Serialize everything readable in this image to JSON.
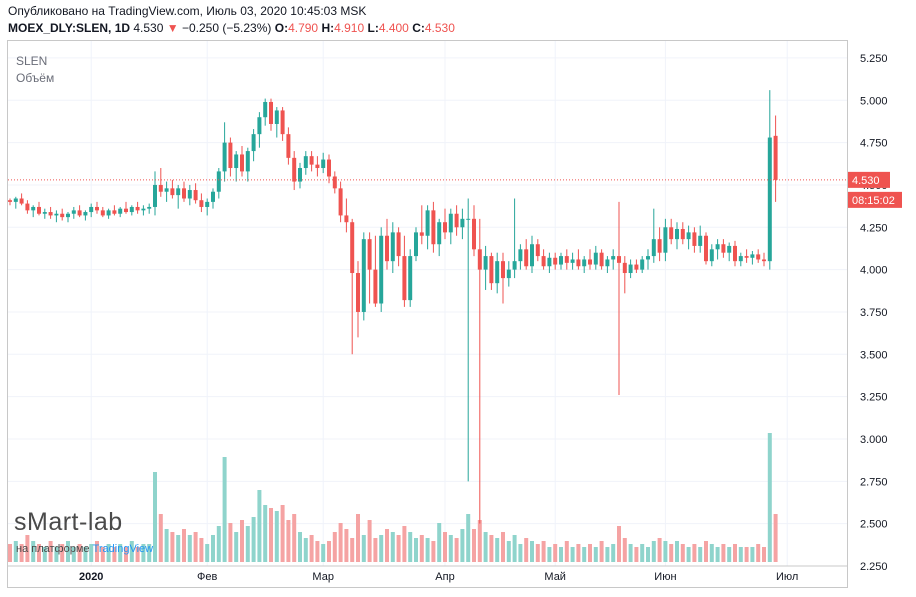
{
  "header": {
    "published": "Опубликовано на TradingView.com, Июль 03, 2020 10:45:03 MSK",
    "symbol": "MOEX_DLY:SLEN, 1D",
    "last": "4.530",
    "change_arrow": "▼",
    "change": "−0.250 (−5.23%)",
    "o_label": "O:",
    "o": "4.790",
    "h_label": "H:",
    "h": "4.910",
    "l_label": "L:",
    "l": "4.400",
    "c_label": "C:",
    "c": "4.530"
  },
  "legend": {
    "symbol": "SLEN",
    "volume": "Объём"
  },
  "watermark": {
    "brand": "sMart-lab",
    "platform_prefix": "на платформе ",
    "platform": "TradingView"
  },
  "price_badge": "4.530",
  "time_badge": "08:15:02",
  "colors": {
    "up": "#26a69a",
    "down": "#ef5350",
    "vol_up": "#8fd4cc",
    "vol_down": "#f5a3a3",
    "grid": "#f0f3fa"
  },
  "chart_data": {
    "type": "candlestick",
    "y_ticks": [
      "5.250",
      "5.000",
      "4.750",
      "4.500",
      "4.250",
      "4.000",
      "3.750",
      "3.500",
      "3.250",
      "3.000",
      "2.750",
      "2.500",
      "2.250"
    ],
    "ylim": [
      2.25,
      5.35
    ],
    "x_labels": [
      {
        "label": "2020",
        "bar": 14
      },
      {
        "label": "Фев",
        "bar": 34
      },
      {
        "label": "Мар",
        "bar": 54
      },
      {
        "label": "Апр",
        "bar": 75
      },
      {
        "label": "Май",
        "bar": 94
      },
      {
        "label": "Июн",
        "bar": 113
      },
      {
        "label": "Июл",
        "bar": 134
      }
    ],
    "last_price_line": 4.53,
    "candles": [
      {
        "o": 4.41,
        "h": 4.42,
        "l": 4.38,
        "c": 4.4,
        "v": 0.6
      },
      {
        "o": 4.4,
        "h": 4.43,
        "l": 4.36,
        "c": 4.42,
        "v": 0.7
      },
      {
        "o": 4.42,
        "h": 4.45,
        "l": 4.38,
        "c": 4.39,
        "v": 0.6
      },
      {
        "o": 4.39,
        "h": 4.41,
        "l": 4.33,
        "c": 4.35,
        "v": 0.9
      },
      {
        "o": 4.35,
        "h": 4.38,
        "l": 4.31,
        "c": 4.37,
        "v": 0.7
      },
      {
        "o": 4.37,
        "h": 4.4,
        "l": 4.32,
        "c": 4.33,
        "v": 0.6
      },
      {
        "o": 4.33,
        "h": 4.36,
        "l": 4.3,
        "c": 4.34,
        "v": 0.5
      },
      {
        "o": 4.34,
        "h": 4.37,
        "l": 4.3,
        "c": 4.32,
        "v": 0.7
      },
      {
        "o": 4.32,
        "h": 4.35,
        "l": 4.28,
        "c": 4.33,
        "v": 0.5
      },
      {
        "o": 4.33,
        "h": 4.36,
        "l": 4.29,
        "c": 4.31,
        "v": 0.6
      },
      {
        "o": 4.31,
        "h": 4.34,
        "l": 4.28,
        "c": 4.33,
        "v": 0.7
      },
      {
        "o": 4.33,
        "h": 4.37,
        "l": 4.3,
        "c": 4.35,
        "v": 0.5
      },
      {
        "o": 4.35,
        "h": 4.38,
        "l": 4.31,
        "c": 4.32,
        "v": 0.6
      },
      {
        "o": 4.32,
        "h": 4.35,
        "l": 4.29,
        "c": 4.34,
        "v": 0.5
      },
      {
        "o": 4.34,
        "h": 4.39,
        "l": 4.31,
        "c": 4.37,
        "v": 0.6
      },
      {
        "o": 4.37,
        "h": 4.4,
        "l": 4.33,
        "c": 4.35,
        "v": 0.7
      },
      {
        "o": 4.35,
        "h": 4.37,
        "l": 4.31,
        "c": 4.32,
        "v": 0.5
      },
      {
        "o": 4.32,
        "h": 4.36,
        "l": 4.3,
        "c": 4.35,
        "v": 0.6
      },
      {
        "o": 4.35,
        "h": 4.38,
        "l": 4.32,
        "c": 4.33,
        "v": 0.5
      },
      {
        "o": 4.33,
        "h": 4.37,
        "l": 4.31,
        "c": 4.36,
        "v": 0.6
      },
      {
        "o": 4.36,
        "h": 4.4,
        "l": 4.33,
        "c": 4.34,
        "v": 0.5
      },
      {
        "o": 4.34,
        "h": 4.38,
        "l": 4.32,
        "c": 4.37,
        "v": 0.7
      },
      {
        "o": 4.37,
        "h": 4.4,
        "l": 4.33,
        "c": 4.35,
        "v": 0.5
      },
      {
        "o": 4.35,
        "h": 4.38,
        "l": 4.32,
        "c": 4.36,
        "v": 0.6
      },
      {
        "o": 4.36,
        "h": 4.39,
        "l": 4.33,
        "c": 4.37,
        "v": 0.6
      },
      {
        "o": 4.37,
        "h": 4.58,
        "l": 4.32,
        "c": 4.5,
        "v": 3.0
      },
      {
        "o": 4.5,
        "h": 4.6,
        "l": 4.43,
        "c": 4.46,
        "v": 1.6
      },
      {
        "o": 4.46,
        "h": 4.52,
        "l": 4.4,
        "c": 4.48,
        "v": 1.1
      },
      {
        "o": 4.48,
        "h": 4.53,
        "l": 4.42,
        "c": 4.44,
        "v": 1.0
      },
      {
        "o": 4.44,
        "h": 4.5,
        "l": 4.36,
        "c": 4.48,
        "v": 0.9
      },
      {
        "o": 4.48,
        "h": 4.52,
        "l": 4.4,
        "c": 4.42,
        "v": 1.1
      },
      {
        "o": 4.42,
        "h": 4.5,
        "l": 4.38,
        "c": 4.47,
        "v": 0.9
      },
      {
        "o": 4.47,
        "h": 4.51,
        "l": 4.39,
        "c": 4.41,
        "v": 1.0
      },
      {
        "o": 4.41,
        "h": 4.45,
        "l": 4.34,
        "c": 4.37,
        "v": 0.8
      },
      {
        "o": 4.37,
        "h": 4.42,
        "l": 4.32,
        "c": 4.4,
        "v": 0.6
      },
      {
        "o": 4.4,
        "h": 4.48,
        "l": 4.36,
        "c": 4.46,
        "v": 0.9
      },
      {
        "o": 4.46,
        "h": 4.6,
        "l": 4.42,
        "c": 4.58,
        "v": 1.2
      },
      {
        "o": 4.58,
        "h": 4.87,
        "l": 4.52,
        "c": 4.75,
        "v": 3.5
      },
      {
        "o": 4.75,
        "h": 4.78,
        "l": 4.55,
        "c": 4.6,
        "v": 1.3
      },
      {
        "o": 4.6,
        "h": 4.7,
        "l": 4.52,
        "c": 4.68,
        "v": 1.0
      },
      {
        "o": 4.68,
        "h": 4.73,
        "l": 4.55,
        "c": 4.58,
        "v": 1.4
      },
      {
        "o": 4.58,
        "h": 4.72,
        "l": 4.52,
        "c": 4.7,
        "v": 1.2
      },
      {
        "o": 4.7,
        "h": 4.83,
        "l": 4.64,
        "c": 4.8,
        "v": 1.5
      },
      {
        "o": 4.8,
        "h": 4.93,
        "l": 4.72,
        "c": 4.9,
        "v": 2.4
      },
      {
        "o": 4.9,
        "h": 5.01,
        "l": 4.85,
        "c": 4.99,
        "v": 1.9
      },
      {
        "o": 4.99,
        "h": 5.01,
        "l": 4.82,
        "c": 4.86,
        "v": 1.8
      },
      {
        "o": 4.86,
        "h": 4.96,
        "l": 4.78,
        "c": 4.94,
        "v": 1.7
      },
      {
        "o": 4.94,
        "h": 4.96,
        "l": 4.76,
        "c": 4.8,
        "v": 1.9
      },
      {
        "o": 4.8,
        "h": 4.84,
        "l": 4.62,
        "c": 4.66,
        "v": 1.4
      },
      {
        "o": 4.66,
        "h": 4.7,
        "l": 4.47,
        "c": 4.52,
        "v": 1.6
      },
      {
        "o": 4.52,
        "h": 4.63,
        "l": 4.48,
        "c": 4.6,
        "v": 1.0
      },
      {
        "o": 4.6,
        "h": 4.7,
        "l": 4.56,
        "c": 4.67,
        "v": 0.8
      },
      {
        "o": 4.67,
        "h": 4.7,
        "l": 4.58,
        "c": 4.62,
        "v": 0.9
      },
      {
        "o": 4.62,
        "h": 4.67,
        "l": 4.55,
        "c": 4.6,
        "v": 0.7
      },
      {
        "o": 4.6,
        "h": 4.69,
        "l": 4.57,
        "c": 4.65,
        "v": 0.6
      },
      {
        "o": 4.65,
        "h": 4.68,
        "l": 4.51,
        "c": 4.55,
        "v": 0.7
      },
      {
        "o": 4.55,
        "h": 4.58,
        "l": 4.45,
        "c": 4.48,
        "v": 1.0
      },
      {
        "o": 4.48,
        "h": 4.52,
        "l": 4.28,
        "c": 4.32,
        "v": 1.3
      },
      {
        "o": 4.32,
        "h": 4.42,
        "l": 4.22,
        "c": 4.28,
        "v": 1.1
      },
      {
        "o": 4.28,
        "h": 4.3,
        "l": 3.5,
        "c": 3.98,
        "v": 0.8
      },
      {
        "o": 3.98,
        "h": 4.05,
        "l": 3.6,
        "c": 3.75,
        "v": 1.6
      },
      {
        "o": 3.75,
        "h": 4.22,
        "l": 3.7,
        "c": 4.18,
        "v": 0.9
      },
      {
        "o": 4.18,
        "h": 4.22,
        "l": 3.8,
        "c": 4.0,
        "v": 1.4
      },
      {
        "o": 4.0,
        "h": 4.2,
        "l": 3.78,
        "c": 3.8,
        "v": 0.8
      },
      {
        "o": 3.8,
        "h": 4.25,
        "l": 3.75,
        "c": 4.2,
        "v": 0.9
      },
      {
        "o": 4.2,
        "h": 4.3,
        "l": 4.0,
        "c": 4.05,
        "v": 1.1
      },
      {
        "o": 4.05,
        "h": 4.28,
        "l": 3.98,
        "c": 4.22,
        "v": 1.0
      },
      {
        "o": 4.22,
        "h": 4.25,
        "l": 4.02,
        "c": 4.08,
        "v": 0.9
      },
      {
        "o": 4.08,
        "h": 4.2,
        "l": 3.78,
        "c": 3.82,
        "v": 1.2
      },
      {
        "o": 3.82,
        "h": 4.12,
        "l": 3.78,
        "c": 4.08,
        "v": 1.0
      },
      {
        "o": 4.08,
        "h": 4.25,
        "l": 4.05,
        "c": 4.22,
        "v": 0.8
      },
      {
        "o": 4.22,
        "h": 4.38,
        "l": 4.15,
        "c": 4.2,
        "v": 0.9
      },
      {
        "o": 4.2,
        "h": 4.38,
        "l": 4.12,
        "c": 4.35,
        "v": 0.8
      },
      {
        "o": 4.35,
        "h": 4.4,
        "l": 4.1,
        "c": 4.15,
        "v": 0.7
      },
      {
        "o": 4.15,
        "h": 4.3,
        "l": 4.08,
        "c": 4.28,
        "v": 1.3
      },
      {
        "o": 4.28,
        "h": 4.36,
        "l": 4.18,
        "c": 4.22,
        "v": 1.0
      },
      {
        "o": 4.22,
        "h": 4.36,
        "l": 4.15,
        "c": 4.33,
        "v": 0.9
      },
      {
        "o": 4.33,
        "h": 4.38,
        "l": 4.2,
        "c": 4.25,
        "v": 0.8
      },
      {
        "o": 4.25,
        "h": 4.36,
        "l": 4.18,
        "c": 4.3,
        "v": 1.1
      },
      {
        "o": 4.3,
        "h": 4.42,
        "l": 2.75,
        "c": 4.3,
        "v": 1.6
      },
      {
        "o": 4.3,
        "h": 4.38,
        "l": 4.08,
        "c": 4.12,
        "v": 1.1
      },
      {
        "o": 4.12,
        "h": 4.3,
        "l": 2.5,
        "c": 4.0,
        "v": 1.4
      },
      {
        "o": 4.0,
        "h": 4.14,
        "l": 3.88,
        "c": 4.08,
        "v": 1.0
      },
      {
        "o": 4.08,
        "h": 4.1,
        "l": 3.88,
        "c": 3.92,
        "v": 0.9
      },
      {
        "o": 3.92,
        "h": 4.1,
        "l": 3.86,
        "c": 4.05,
        "v": 0.8
      },
      {
        "o": 4.05,
        "h": 4.1,
        "l": 3.8,
        "c": 3.95,
        "v": 1.0
      },
      {
        "o": 3.95,
        "h": 4.05,
        "l": 3.9,
        "c": 4.0,
        "v": 0.7
      },
      {
        "o": 4.0,
        "h": 4.42,
        "l": 3.95,
        "c": 4.05,
        "v": 0.9
      },
      {
        "o": 4.05,
        "h": 4.15,
        "l": 4.0,
        "c": 4.12,
        "v": 0.6
      },
      {
        "o": 4.12,
        "h": 4.18,
        "l": 4.0,
        "c": 4.02,
        "v": 0.8
      },
      {
        "o": 4.02,
        "h": 4.2,
        "l": 3.98,
        "c": 4.15,
        "v": 0.7
      },
      {
        "o": 4.15,
        "h": 4.18,
        "l": 4.05,
        "c": 4.08,
        "v": 0.6
      },
      {
        "o": 4.08,
        "h": 4.12,
        "l": 4.0,
        "c": 4.02,
        "v": 0.7
      },
      {
        "o": 4.02,
        "h": 4.1,
        "l": 3.98,
        "c": 4.07,
        "v": 0.5
      },
      {
        "o": 4.07,
        "h": 4.1,
        "l": 4.0,
        "c": 4.03,
        "v": 0.6
      },
      {
        "o": 4.03,
        "h": 4.1,
        "l": 4.0,
        "c": 4.08,
        "v": 0.5
      },
      {
        "o": 4.08,
        "h": 4.12,
        "l": 4.0,
        "c": 4.04,
        "v": 0.7
      },
      {
        "o": 4.04,
        "h": 4.1,
        "l": 4.0,
        "c": 4.06,
        "v": 0.5
      },
      {
        "o": 4.06,
        "h": 4.12,
        "l": 4.0,
        "c": 4.02,
        "v": 0.6
      },
      {
        "o": 4.02,
        "h": 4.08,
        "l": 3.98,
        "c": 4.06,
        "v": 0.5
      },
      {
        "o": 4.06,
        "h": 4.12,
        "l": 4.0,
        "c": 4.03,
        "v": 0.6
      },
      {
        "o": 4.03,
        "h": 4.14,
        "l": 4.0,
        "c": 4.1,
        "v": 0.5
      },
      {
        "o": 4.1,
        "h": 4.12,
        "l": 4.0,
        "c": 4.02,
        "v": 0.7
      },
      {
        "o": 4.02,
        "h": 4.08,
        "l": 3.98,
        "c": 4.06,
        "v": 0.5
      },
      {
        "o": 4.06,
        "h": 4.12,
        "l": 4.0,
        "c": 4.08,
        "v": 0.6
      },
      {
        "o": 4.08,
        "h": 4.4,
        "l": 3.26,
        "c": 4.04,
        "v": 1.2
      },
      {
        "o": 4.04,
        "h": 4.08,
        "l": 3.86,
        "c": 3.98,
        "v": 0.8
      },
      {
        "o": 3.98,
        "h": 4.06,
        "l": 3.95,
        "c": 4.03,
        "v": 0.6
      },
      {
        "o": 4.03,
        "h": 4.06,
        "l": 3.98,
        "c": 4.0,
        "v": 0.5
      },
      {
        "o": 4.0,
        "h": 4.08,
        "l": 3.98,
        "c": 4.06,
        "v": 0.6
      },
      {
        "o": 4.06,
        "h": 4.12,
        "l": 4.0,
        "c": 4.08,
        "v": 0.5
      },
      {
        "o": 4.08,
        "h": 4.36,
        "l": 4.04,
        "c": 4.18,
        "v": 0.7
      },
      {
        "o": 4.18,
        "h": 4.25,
        "l": 4.05,
        "c": 4.1,
        "v": 0.8
      },
      {
        "o": 4.1,
        "h": 4.3,
        "l": 4.05,
        "c": 4.25,
        "v": 0.7
      },
      {
        "o": 4.25,
        "h": 4.3,
        "l": 4.15,
        "c": 4.18,
        "v": 0.6
      },
      {
        "o": 4.18,
        "h": 4.28,
        "l": 4.12,
        "c": 4.24,
        "v": 0.7
      },
      {
        "o": 4.24,
        "h": 4.28,
        "l": 4.15,
        "c": 4.18,
        "v": 0.6
      },
      {
        "o": 4.18,
        "h": 4.26,
        "l": 4.12,
        "c": 4.22,
        "v": 0.5
      },
      {
        "o": 4.22,
        "h": 4.25,
        "l": 4.1,
        "c": 4.14,
        "v": 0.6
      },
      {
        "o": 4.14,
        "h": 4.26,
        "l": 4.1,
        "c": 4.2,
        "v": 0.5
      },
      {
        "o": 4.2,
        "h": 4.22,
        "l": 4.03,
        "c": 4.05,
        "v": 0.7
      },
      {
        "o": 4.05,
        "h": 4.15,
        "l": 4.02,
        "c": 4.12,
        "v": 0.6
      },
      {
        "o": 4.12,
        "h": 4.18,
        "l": 4.06,
        "c": 4.15,
        "v": 0.5
      },
      {
        "o": 4.15,
        "h": 4.18,
        "l": 4.07,
        "c": 4.1,
        "v": 0.6
      },
      {
        "o": 4.1,
        "h": 4.16,
        "l": 4.05,
        "c": 4.14,
        "v": 0.5
      },
      {
        "o": 4.14,
        "h": 4.17,
        "l": 4.02,
        "c": 4.05,
        "v": 0.6
      },
      {
        "o": 4.05,
        "h": 4.1,
        "l": 4.02,
        "c": 4.08,
        "v": 0.5
      },
      {
        "o": 4.08,
        "h": 4.12,
        "l": 4.04,
        "c": 4.07,
        "v": 0.5
      },
      {
        "o": 4.07,
        "h": 4.11,
        "l": 4.03,
        "c": 4.09,
        "v": 0.5
      },
      {
        "o": 4.09,
        "h": 4.12,
        "l": 4.04,
        "c": 4.06,
        "v": 0.6
      },
      {
        "o": 4.06,
        "h": 4.1,
        "l": 4.02,
        "c": 4.05,
        "v": 0.5
      },
      {
        "o": 4.05,
        "h": 5.06,
        "l": 4.0,
        "c": 4.78,
        "v": 4.3
      },
      {
        "o": 4.79,
        "h": 4.91,
        "l": 4.4,
        "c": 4.53,
        "v": 1.6
      }
    ]
  }
}
